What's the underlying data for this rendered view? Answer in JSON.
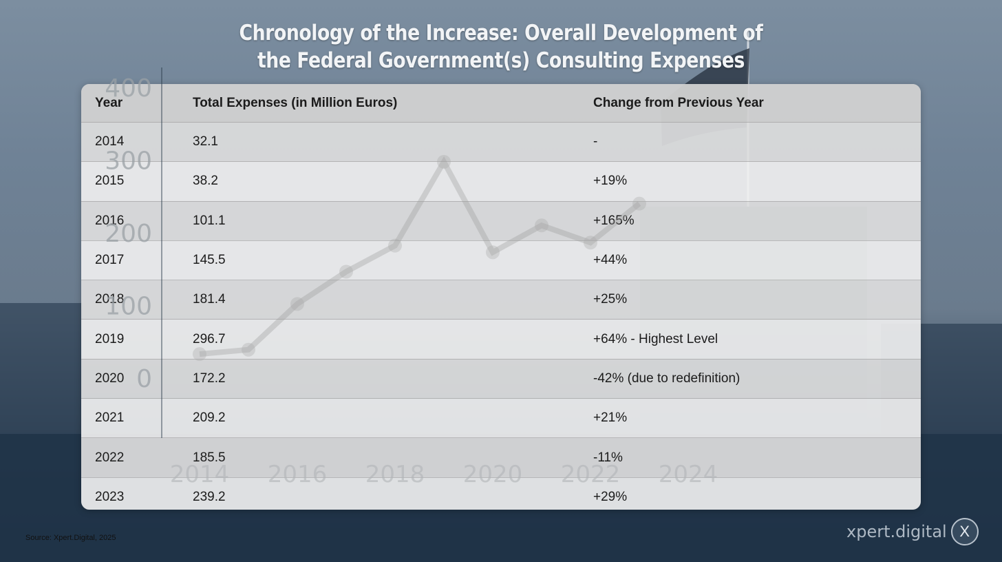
{
  "title_line1": "Chronology of the Increase: Overall Development of",
  "title_line2": "the Federal Government(s) Consulting Expenses",
  "table": {
    "headers": [
      "Year",
      "Total Expenses (in Million Euros)",
      "Change from Previous Year"
    ],
    "rows": [
      [
        "2014",
        "32.1",
        "-"
      ],
      [
        "2015",
        "38.2",
        "+19%"
      ],
      [
        "2016",
        "101.1",
        "+165%"
      ],
      [
        "2017",
        "145.5",
        "+44%"
      ],
      [
        "2018",
        "181.4",
        "+25%"
      ],
      [
        "2019",
        "296.7",
        "+64% - Highest Level"
      ],
      [
        "2020",
        "172.2",
        "-42% (due to redefinition)"
      ],
      [
        "2021",
        "209.2",
        "+21%"
      ],
      [
        "2022",
        "185.5",
        "-11%"
      ],
      [
        "2023",
        "239.2",
        "+29%"
      ]
    ]
  },
  "chart_data": {
    "type": "table",
    "columns": [
      "Year",
      "Total Expenses (in Million Euros)",
      "Change from Previous Year"
    ],
    "rows": [
      [
        "2014",
        32.1,
        "-"
      ],
      [
        "2015",
        38.2,
        "+19%"
      ],
      [
        "2016",
        101.1,
        "+165%"
      ],
      [
        "2017",
        145.5,
        "+44%"
      ],
      [
        "2018",
        181.4,
        "+25%"
      ],
      [
        "2019",
        296.7,
        "+64% - Highest Level"
      ],
      [
        "2020",
        172.2,
        "-42% (due to redefinition)"
      ],
      [
        "2021",
        209.2,
        "+21%"
      ],
      [
        "2022",
        185.5,
        "-11%"
      ],
      [
        "2023",
        239.2,
        "+29%"
      ]
    ],
    "background_chart": {
      "type": "line",
      "y_ticks": [
        "0",
        "100",
        "200",
        "300",
        "400"
      ],
      "x_ticks": [
        "2014",
        "2016",
        "2018",
        "2020",
        "2022",
        "2024"
      ],
      "ylim": [
        0,
        400
      ]
    }
  },
  "source": "Source: Xpert.Digital, 2025",
  "brand": {
    "name": "xpert.digital",
    "logo_letter": "X"
  }
}
